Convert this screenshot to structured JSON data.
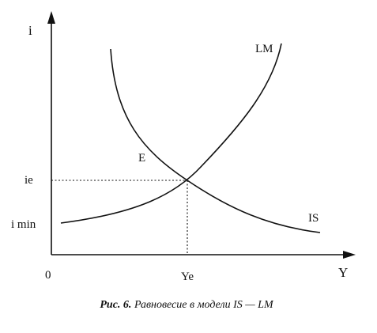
{
  "axes": {
    "y_label": "i",
    "x_label": "Y",
    "origin": "0"
  },
  "labels": {
    "ye": "Ye",
    "ie": "ie",
    "i_min": "i min",
    "equilibrium": "E"
  },
  "curves": {
    "lm": "LM",
    "is": "IS"
  },
  "caption": {
    "figure": "Рис. 6.",
    "text": "Равновесие в модели IS — LM"
  }
}
